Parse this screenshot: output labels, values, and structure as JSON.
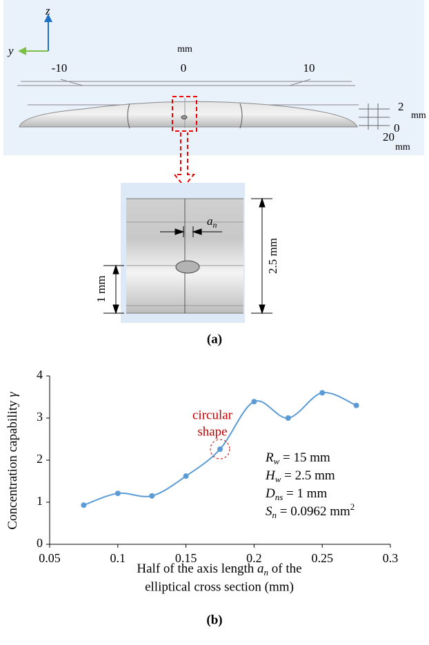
{
  "panel_a": {
    "axis_z": "z",
    "axis_y": "y",
    "scale_unit": "mm",
    "scale_ticks": [
      "-10",
      "0",
      "10"
    ],
    "box_ticks": [
      "2",
      "0",
      "20"
    ],
    "box_units": [
      "mm",
      "mm"
    ],
    "dim_symbol": "a",
    "dim_subscript": "n",
    "dim_height": "2.5 mm",
    "dim_hole": "1 mm"
  },
  "panel_labels": [
    "(a)",
    "(b)"
  ],
  "chart_data": {
    "type": "line",
    "x": [
      0.075,
      0.1,
      0.125,
      0.15,
      0.175,
      0.2,
      0.225,
      0.25,
      0.275
    ],
    "series": [
      {
        "color": "#5b9bd5",
        "values": [
          0.93,
          1.21,
          1.15,
          1.62,
          2.26,
          3.39,
          3.0,
          3.6,
          3.3
        ]
      }
    ],
    "xlim": [
      0.05,
      0.3
    ],
    "xticks": [
      0.05,
      0.1,
      0.15,
      0.2,
      0.25,
      0.3
    ],
    "ylim": [
      0,
      4
    ],
    "yticks": [
      0,
      1,
      2,
      3,
      4
    ],
    "y_label": {
      "text": "Concentration capability ",
      "symbol": "γ"
    },
    "x_label": {
      "line1": {
        "text": "Half of the axis length ",
        "symbol": "a",
        "subscript": "n",
        "text_after": " of the"
      },
      "line2": "elliptical cross section (mm)"
    },
    "annotation": {
      "lines": [
        "circular",
        "shape"
      ],
      "color": "#c00000"
    },
    "parameters": [
      {
        "symbol": "R",
        "subscript": "w",
        "text": " = 15 mm"
      },
      {
        "symbol": "H",
        "subscript": "w",
        "text": " = 2.5 mm"
      },
      {
        "symbol": "D",
        "subscript": "ns",
        "text": " = 1 mm"
      },
      {
        "symbol": "S",
        "subscript": "n",
        "text": " = 0.0962 mm",
        "superscript": "2"
      }
    ]
  }
}
